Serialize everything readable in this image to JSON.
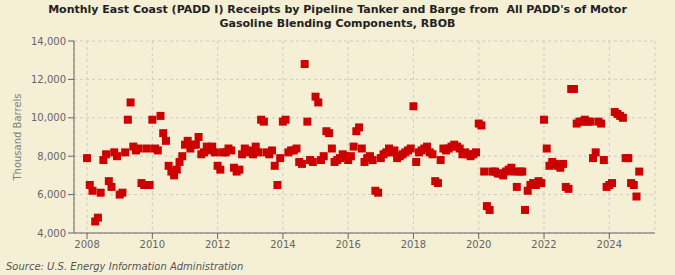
{
  "chart_data": {
    "type": "scatter",
    "title": "Monthly East Coast (PADD I) Receipts by Pipeline Tanker and Barge from  All PADD's of Motor\nGasoline Blending Components, RBOB",
    "ylabel": "Thousand Barrels",
    "annotations": [
      "Source: U.S. Energy Information Administration"
    ],
    "color": "#cc0000",
    "marker": "square",
    "grid": true,
    "xlim": [
      2007.6,
      2025.4
    ],
    "xticks": [
      2008,
      2010,
      2012,
      2014,
      2016,
      2018,
      2020,
      2022,
      2024
    ],
    "ylim": [
      4000,
      14000
    ],
    "yticks": [
      {
        "value": 4000,
        "label": "4,000"
      },
      {
        "value": 6000,
        "label": "6,000"
      },
      {
        "value": 8000,
        "label": "8,000"
      },
      {
        "value": 10000,
        "label": "10,000"
      },
      {
        "value": 12000,
        "label": "12,000"
      },
      {
        "value": 14000,
        "label": "14,000"
      }
    ],
    "x": [
      2008.0,
      2008.083,
      2008.167,
      2008.25,
      2008.333,
      2008.417,
      2008.5,
      2008.583,
      2008.667,
      2008.75,
      2008.833,
      2008.917,
      2009.0,
      2009.083,
      2009.167,
      2009.25,
      2009.333,
      2009.417,
      2009.5,
      2009.583,
      2009.667,
      2009.75,
      2009.833,
      2009.917,
      2010.0,
      2010.083,
      2010.167,
      2010.25,
      2010.333,
      2010.417,
      2010.5,
      2010.583,
      2010.667,
      2010.75,
      2010.833,
      2010.917,
      2011.0,
      2011.083,
      2011.167,
      2011.25,
      2011.333,
      2011.417,
      2011.5,
      2011.583,
      2011.667,
      2011.75,
      2011.833,
      2011.917,
      2012.0,
      2012.083,
      2012.167,
      2012.25,
      2012.333,
      2012.417,
      2012.5,
      2012.583,
      2012.667,
      2012.75,
      2012.833,
      2012.917,
      2013.0,
      2013.083,
      2013.167,
      2013.25,
      2013.333,
      2013.417,
      2013.5,
      2013.583,
      2013.667,
      2013.75,
      2013.833,
      2013.917,
      2014.0,
      2014.083,
      2014.167,
      2014.25,
      2014.333,
      2014.417,
      2014.5,
      2014.583,
      2014.667,
      2014.75,
      2014.833,
      2014.917,
      2015.0,
      2015.083,
      2015.167,
      2015.25,
      2015.333,
      2015.417,
      2015.5,
      2015.583,
      2015.667,
      2015.75,
      2015.833,
      2015.917,
      2016.0,
      2016.083,
      2016.167,
      2016.25,
      2016.333,
      2016.417,
      2016.5,
      2016.583,
      2016.667,
      2016.75,
      2016.833,
      2016.917,
      2017.0,
      2017.083,
      2017.167,
      2017.25,
      2017.333,
      2017.417,
      2017.5,
      2017.583,
      2017.667,
      2017.75,
      2017.833,
      2017.917,
      2018.0,
      2018.083,
      2018.167,
      2018.25,
      2018.333,
      2018.417,
      2018.5,
      2018.583,
      2018.667,
      2018.75,
      2018.833,
      2018.917,
      2019.0,
      2019.083,
      2019.167,
      2019.25,
      2019.333,
      2019.417,
      2019.5,
      2019.583,
      2019.667,
      2019.75,
      2019.833,
      2019.917,
      2020.0,
      2020.083,
      2020.167,
      2020.25,
      2020.333,
      2020.417,
      2020.5,
      2020.583,
      2020.667,
      2020.75,
      2020.833,
      2020.917,
      2021.0,
      2021.083,
      2021.167,
      2021.25,
      2021.333,
      2021.417,
      2021.5,
      2021.583,
      2021.667,
      2021.75,
      2021.833,
      2021.917,
      2022.0,
      2022.083,
      2022.167,
      2022.25,
      2022.333,
      2022.417,
      2022.5,
      2022.583,
      2022.667,
      2022.75,
      2022.833,
      2022.917,
      2023.0,
      2023.083,
      2023.167,
      2023.25,
      2023.333,
      2023.417,
      2023.5,
      2023.583,
      2023.667,
      2023.75,
      2023.833,
      2023.917,
      2024.0,
      2024.083,
      2024.167,
      2024.25,
      2024.333,
      2024.417,
      2024.5,
      2024.583,
      2024.667,
      2024.75,
      2024.833,
      2024.917
    ],
    "values": [
      7900,
      6500,
      6200,
      4600,
      4800,
      6100,
      7800,
      8100,
      6700,
      6400,
      8200,
      8000,
      6000,
      6100,
      8200,
      9900,
      10800,
      8500,
      8300,
      8400,
      6600,
      6500,
      8400,
      6500,
      9900,
      8400,
      8300,
      10100,
      9200,
      8800,
      7500,
      7200,
      7000,
      7300,
      7700,
      8000,
      8600,
      8800,
      8400,
      8600,
      8600,
      9000,
      8100,
      8200,
      8500,
      8300,
      8500,
      8200,
      7500,
      7300,
      8200,
      8200,
      8400,
      8300,
      7400,
      7200,
      7300,
      8100,
      8400,
      8200,
      8300,
      8100,
      8500,
      8200,
      9900,
      9800,
      8200,
      8100,
      8300,
      7500,
      6500,
      7900,
      9800,
      9900,
      8200,
      8300,
      8300,
      8400,
      7700,
      7600,
      12800,
      9800,
      7800,
      7700,
      11100,
      10800,
      7800,
      8000,
      9300,
      9200,
      8400,
      7700,
      7800,
      7900,
      8100,
      8000,
      7800,
      8000,
      8500,
      9300,
      9500,
      8400,
      7700,
      7900,
      8000,
      7800,
      6200,
      6100,
      7900,
      8100,
      8200,
      8400,
      8200,
      8300,
      7900,
      8000,
      8100,
      8200,
      8300,
      8400,
      10600,
      7700,
      8200,
      8300,
      8400,
      8500,
      8200,
      8100,
      6700,
      6600,
      7800,
      8400,
      8300,
      8400,
      8500,
      8600,
      8500,
      8400,
      8100,
      8200,
      8100,
      8000,
      8100,
      8200,
      9700,
      9600,
      7200,
      5400,
      5200,
      7200,
      7200,
      7100,
      7100,
      7000,
      7200,
      7300,
      7400,
      7200,
      6400,
      7200,
      7200,
      5200,
      6200,
      6500,
      6600,
      6500,
      6700,
      6600,
      9900,
      8400,
      7500,
      7700,
      7600,
      7500,
      7400,
      7600,
      6400,
      6300,
      11500,
      11500,
      9700,
      9800,
      9800,
      9900,
      9800,
      9800,
      7900,
      8200,
      9800,
      9700,
      7800,
      6400,
      6500,
      6600,
      10300,
      10200,
      10100,
      10000,
      7900,
      7900,
      6600,
      6500,
      5900,
      7200
    ]
  }
}
